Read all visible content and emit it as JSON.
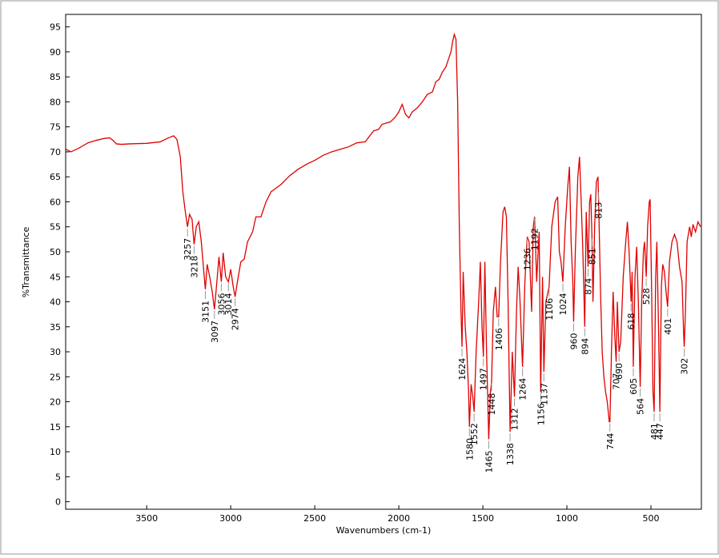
{
  "chart_data": {
    "type": "line",
    "xlabel": "Wavenumbers (cm-1)",
    "ylabel": "%Transmittance",
    "color": "#e00000",
    "xlim": [
      3982,
      200
    ],
    "ylim": [
      -1.5,
      97.5
    ],
    "xticks": [
      3500,
      3000,
      2500,
      2000,
      1500,
      1000,
      500
    ],
    "yticks": [
      0,
      5,
      10,
      15,
      20,
      25,
      30,
      35,
      40,
      45,
      50,
      55,
      60,
      65,
      70,
      75,
      80,
      85,
      90,
      95
    ],
    "x": [
      3980,
      3950,
      3900,
      3850,
      3800,
      3750,
      3720,
      3700,
      3680,
      3650,
      3600,
      3500,
      3420,
      3370,
      3340,
      3320,
      3300,
      3285,
      3270,
      3257,
      3245,
      3230,
      3218,
      3205,
      3190,
      3175,
      3160,
      3151,
      3140,
      3125,
      3110,
      3097,
      3085,
      3070,
      3056,
      3045,
      3030,
      3014,
      3000,
      2985,
      2974,
      2960,
      2940,
      2920,
      2900,
      2870,
      2850,
      2820,
      2790,
      2760,
      2740,
      2700,
      2650,
      2600,
      2550,
      2500,
      2450,
      2400,
      2350,
      2300,
      2250,
      2200,
      2150,
      2120,
      2100,
      2070,
      2050,
      2020,
      2000,
      1980,
      1960,
      1940,
      1920,
      1890,
      1860,
      1830,
      1800,
      1780,
      1760,
      1740,
      1720,
      1700,
      1690,
      1680,
      1670,
      1660,
      1650,
      1640,
      1630,
      1624,
      1617,
      1605,
      1595,
      1585,
      1580,
      1570,
      1560,
      1552,
      1540,
      1525,
      1515,
      1505,
      1497,
      1488,
      1478,
      1465,
      1455,
      1448,
      1438,
      1425,
      1415,
      1406,
      1395,
      1380,
      1370,
      1360,
      1350,
      1338,
      1325,
      1312,
      1300,
      1290,
      1280,
      1264,
      1250,
      1236,
      1225,
      1210,
      1200,
      1192,
      1180,
      1170,
      1165,
      1156,
      1145,
      1137,
      1125,
      1106,
      1090,
      1070,
      1055,
      1045,
      1035,
      1024,
      1010,
      995,
      985,
      975,
      965,
      960,
      950,
      935,
      925,
      915,
      905,
      894,
      885,
      874,
      865,
      858,
      851,
      845,
      835,
      825,
      815,
      810,
      800,
      790,
      780,
      770,
      760,
      748,
      744,
      735,
      725,
      715,
      707,
      700,
      690,
      680,
      665,
      650,
      640,
      630,
      618,
      612,
      605,
      595,
      585,
      575,
      564,
      555,
      545,
      538,
      528,
      520,
      510,
      505,
      495,
      488,
      481,
      472,
      465,
      455,
      447,
      438,
      430,
      420,
      410,
      401,
      390,
      375,
      360,
      345,
      330,
      315,
      305,
      302,
      295,
      285,
      270,
      260,
      250,
      235,
      220,
      205
    ],
    "values": [
      70.5,
      70,
      70.8,
      71.8,
      72.3,
      72.7,
      72.8,
      72.3,
      71.6,
      71.5,
      71.6,
      71.7,
      72,
      72.8,
      73.2,
      72.5,
      69,
      62,
      58,
      55,
      57.5,
      56.5,
      51.5,
      55,
      56,
      52,
      46,
      42.5,
      47.5,
      45,
      42,
      38.5,
      43,
      49,
      44,
      49.8,
      45,
      44,
      46.5,
      43,
      41,
      44,
      48,
      48.5,
      52,
      54,
      57,
      57,
      60,
      62,
      62.5,
      63.5,
      65.2,
      66.5,
      67.5,
      68.3,
      69.3,
      70,
      70.5,
      71,
      71.8,
      72,
      74.2,
      74.5,
      75.5,
      75.8,
      76,
      77,
      78,
      79.5,
      77.5,
      76.8,
      78,
      78.8,
      80,
      81.5,
      82,
      84,
      84.5,
      86,
      87,
      89,
      90,
      92,
      93.5,
      92.5,
      80,
      55,
      38,
      31,
      46,
      35,
      30,
      22,
      15,
      23.5,
      21,
      18,
      30,
      40,
      48,
      35,
      29,
      48,
      30,
      12.5,
      22,
      24,
      38,
      43,
      37,
      37,
      48,
      58,
      59,
      57,
      40,
      14,
      30,
      21,
      38,
      47,
      41,
      27,
      44,
      53,
      52,
      38,
      55,
      57,
      44,
      51,
      54,
      22,
      45,
      26,
      40,
      43,
      55,
      60,
      61,
      50,
      48,
      44,
      55,
      63,
      67,
      52,
      44,
      36,
      50,
      65,
      69,
      60,
      50,
      35,
      58,
      47,
      60,
      61.5,
      53,
      40,
      55,
      64,
      65,
      58,
      42,
      30,
      25,
      22,
      20,
      16,
      16,
      30,
      42,
      33,
      28,
      40,
      30,
      32,
      45,
      52,
      56,
      50,
      40,
      46,
      27,
      45,
      51,
      40,
      23,
      40,
      50,
      52,
      45,
      55,
      60,
      60.5,
      40,
      22,
      18,
      45,
      52,
      35,
      18,
      43,
      47.5,
      46,
      42,
      39,
      48,
      52,
      53.5,
      52,
      47,
      44,
      33,
      31,
      38,
      52,
      55,
      53,
      55.5,
      54,
      56,
      55
    ],
    "peaks": [
      3257,
      3218,
      3151,
      3097,
      3056,
      3014,
      2974,
      1624,
      1580,
      1552,
      1497,
      1465,
      1448,
      1406,
      1338,
      1312,
      1264,
      1236,
      1192,
      1156,
      1137,
      1106,
      1024,
      960,
      894,
      874,
      851,
      813,
      744,
      707,
      690,
      618,
      605,
      564,
      528,
      481,
      447,
      401,
      302
    ]
  }
}
